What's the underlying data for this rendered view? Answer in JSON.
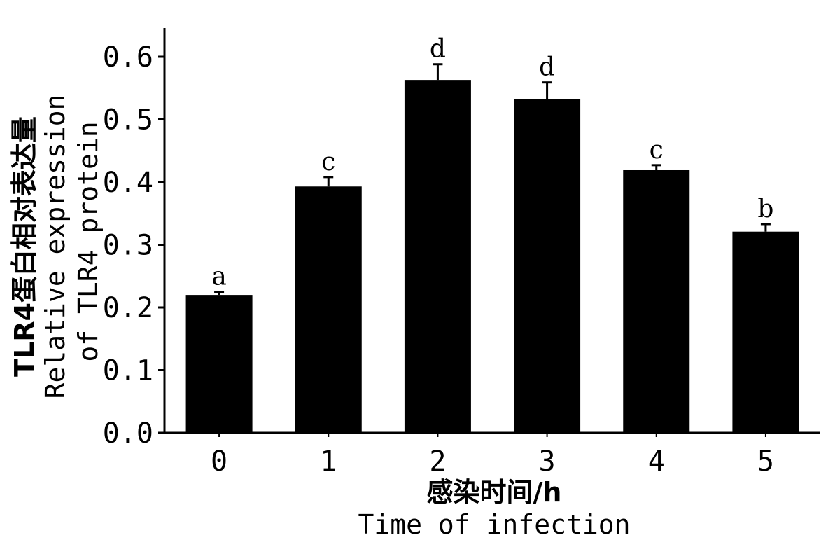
{
  "chart_data": {
    "type": "bar",
    "categories": [
      "0",
      "1",
      "2",
      "3",
      "4",
      "5"
    ],
    "values": [
      0.22,
      0.393,
      0.563,
      0.532,
      0.419,
      0.321
    ],
    "errors": [
      0.005,
      0.015,
      0.025,
      0.027,
      0.008,
      0.012
    ],
    "significance_letters": [
      "a",
      "c",
      "d",
      "d",
      "c",
      "b"
    ],
    "ylim": [
      0,
      0.65
    ],
    "yticks": [
      0.0,
      0.1,
      0.2,
      0.3,
      0.4,
      0.5,
      0.6
    ],
    "ytick_labels": [
      "0.0",
      "0.1",
      "0.2",
      "0.3",
      "0.4",
      "0.5",
      "0.6"
    ],
    "xlabel_zh": "感染时间/h",
    "xlabel_en": "Time of infection",
    "ylabel_zh": "TLR4蛋白相对表达量",
    "ylabel_en_line1": "Relative expression",
    "ylabel_en_line2": "of TLR4 protein",
    "bar_color": "#000000",
    "grid": false
  }
}
